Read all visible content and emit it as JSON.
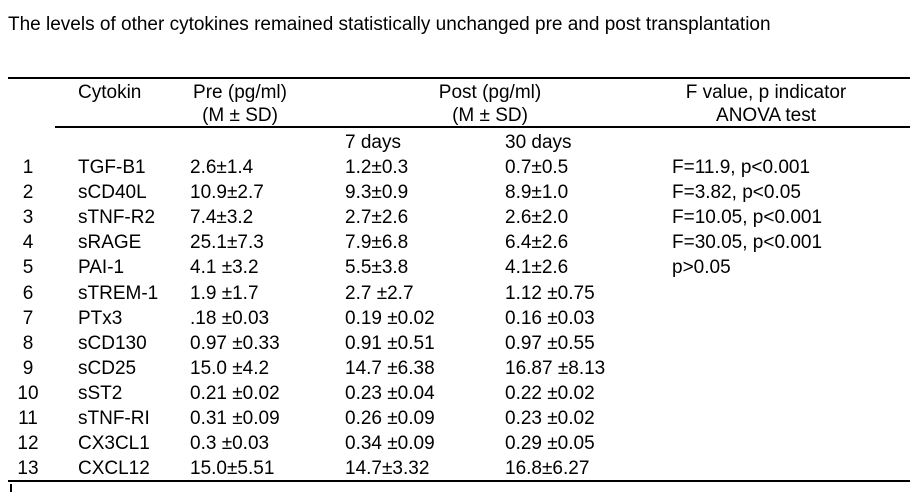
{
  "title": "The levels of other cytokines remained statistically unchanged pre and post transplantation",
  "colors": {
    "background": "#ffffff",
    "text": "#000000",
    "rule": "#000000"
  },
  "table": {
    "headers": {
      "cytokin": "Cytokin",
      "pre_line1": "Pre (pg/ml)",
      "pre_line2": "(M ± SD)",
      "post_line1": "Post (pg/ml)",
      "post_line2": "(M ± SD)",
      "f_line1": "F value, p indicator",
      "f_line2": "ANOVA test",
      "sub_7days": "7 days",
      "sub_30days": "30 days"
    },
    "rows": [
      {
        "num": "1",
        "cytokin": "TGF-B1",
        "pre": "2.6±1.4",
        "post7": "1.2±0.3",
        "post30": "0.7±0.5",
        "f": "F=11.9, p<0.001"
      },
      {
        "num": "2",
        "cytokin": "sCD40L",
        "pre": "10.9±2.7",
        "post7": "9.3±0.9",
        "post30": "8.9±1.0",
        "f": "F=3.82, p<0.05"
      },
      {
        "num": "3",
        "cytokin": "sTNF-R2",
        "pre": "7.4±3.2",
        "post7": "2.7±2.6",
        "post30": "2.6±2.0",
        "f": "F=10.05, p<0.001"
      },
      {
        "num": "4",
        "cytokin": "sRAGE",
        "pre": "25.1±7.3",
        "post7": "7.9±6.8",
        "post30": "6.4±2.6",
        "f": "F=30.05, p<0.001"
      },
      {
        "num": "5",
        "cytokin": "PAI-1",
        "pre": "4.1 ±3.2",
        "post7": "5.5±3.8",
        "post30": "4.1±2.6",
        "f": "p>0.05"
      },
      {
        "num": "6",
        "cytokin": "sTREM-1",
        "pre": "1.9 ±1.7",
        "post7": "2.7 ±2.7",
        "post30": "1.12 ±0.75",
        "f": ""
      },
      {
        "num": "7",
        "cytokin": "PTx3",
        "pre": ".18 ±0.03",
        "post7": "0.19 ±0.02",
        "post30": "0.16 ±0.03",
        "f": ""
      },
      {
        "num": "8",
        "cytokin": "sCD130",
        "pre": "0.97 ±0.33",
        "post7": "0.91 ±0.51",
        "post30": "0.97 ±0.55",
        "f": ""
      },
      {
        "num": "9",
        "cytokin": "sCD25",
        "pre": "15.0 ±4.2",
        "post7": "14.7 ±6.38",
        "post30": "16.87 ±8.13",
        "f": ""
      },
      {
        "num": "10",
        "cytokin": "sST2",
        "pre": "0.21 ±0.02",
        "post7": "0.23 ±0.04",
        "post30": "0.22 ±0.02",
        "f": ""
      },
      {
        "num": "11",
        "cytokin": "sTNF-RI",
        "pre": "0.31 ±0.09",
        "post7": "0.26 ±0.09",
        "post30": "0.23 ±0.02",
        "f": ""
      },
      {
        "num": "12",
        "cytokin": "CX3CL1",
        "pre": "0.3 ±0.03",
        "post7": "0.34 ±0.09",
        "post30": "0.29 ±0.05",
        "f": ""
      },
      {
        "num": "13",
        "cytokin": "CXCL12",
        "pre": "15.0±5.51",
        "post7": "14.7±3.32",
        "post30": "16.8±6.27",
        "f": ""
      }
    ]
  }
}
